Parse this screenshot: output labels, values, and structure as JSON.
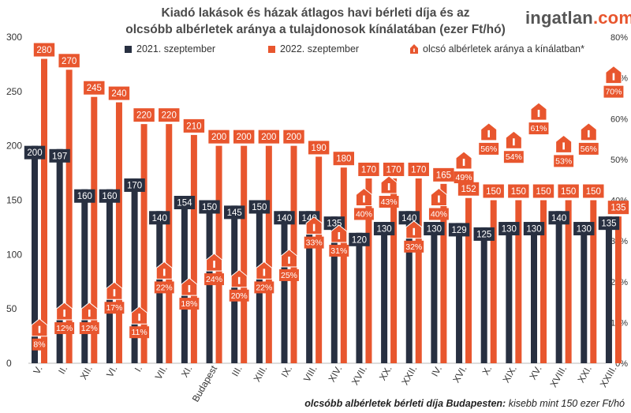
{
  "header": {
    "title_line1": "Kiadó lakások és házak átlagos havi bérleti díja és az",
    "title_line2": "olcsóbb albérletek aránya a tulajdonosok kínálatában (ezer Ft/hó)",
    "brand_main": "ingatlan",
    "brand_tld": ".com"
  },
  "footnote": {
    "bold": "olcsóbb albérletek bérleti díja Budapesten:",
    "rest": " kisebb mint 150 ezer Ft/hó"
  },
  "colors": {
    "series_2021": "#283041",
    "series_2022": "#e8562e",
    "axis_text": "#333333"
  },
  "chart_data": {
    "type": "bar",
    "categories": [
      "V.",
      "II.",
      "XII.",
      "VI.",
      "I.",
      "VII.",
      "XI.",
      "Budapest",
      "III.",
      "XIII.",
      "IX.",
      "VIII.",
      "XIV.",
      "XVII.",
      "XX.",
      "XXII.",
      "IV.",
      "XVI.",
      "X.",
      "XIX.",
      "XV.",
      "XVIII.",
      "XXI.",
      "XXIII."
    ],
    "series": [
      {
        "name": "2021. szeptember",
        "axis": "left",
        "values": [
          200,
          197,
          160,
          160,
          170,
          140,
          154,
          150,
          145,
          150,
          140,
          140,
          135,
          120,
          130,
          140,
          130,
          129,
          125,
          130,
          130,
          140,
          130,
          135
        ]
      },
      {
        "name": "2022. szeptember",
        "axis": "left",
        "values": [
          280,
          270,
          245,
          240,
          220,
          220,
          210,
          200,
          200,
          200,
          200,
          190,
          180,
          170,
          170,
          170,
          165,
          152,
          150,
          150,
          150,
          150,
          150,
          135
        ]
      },
      {
        "name": "olcsó albérletek aránya a kínálatban*",
        "axis": "right",
        "unit": "%",
        "values": [
          8,
          12,
          12,
          17,
          11,
          22,
          18,
          24,
          20,
          22,
          25,
          33,
          31,
          40,
          43,
          32,
          40,
          49,
          56,
          54,
          61,
          53,
          56,
          70
        ]
      }
    ],
    "left_axis": {
      "ylim": [
        0,
        300
      ],
      "ticks": [
        "0",
        "50",
        "100",
        "150",
        "200",
        "250",
        "300"
      ]
    },
    "right_axis": {
      "ylim": [
        0,
        80
      ],
      "ticks": [
        "0%",
        "10%",
        "20%",
        "30%",
        "40%",
        "50%",
        "60%",
        "70%",
        "80%"
      ]
    },
    "legend_position": "top",
    "grid": false
  }
}
